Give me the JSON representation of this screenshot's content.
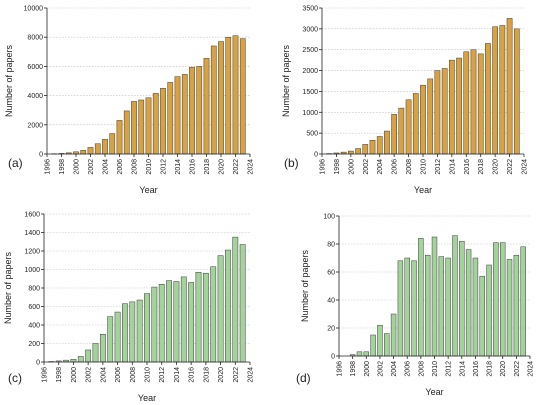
{
  "figure": {
    "panel_labels": [
      "(a)",
      "(b)",
      "(c)",
      "(d)"
    ],
    "colors": {
      "orange": "#d9a241",
      "green": "#a3d39a",
      "bar_stroke": "#3a3a3a",
      "grid": "#bdbdbd"
    }
  },
  "chart_data": [
    {
      "type": "bar",
      "panel": "(a)",
      "xlabel": "Year",
      "ylabel": "Number of papers",
      "xlim": [
        1996,
        2024
      ],
      "xticks": [
        1996,
        1998,
        2000,
        2002,
        2004,
        2006,
        2008,
        2010,
        2012,
        2014,
        2016,
        2018,
        2020,
        2022,
        2024
      ],
      "ylim": [
        0,
        10000
      ],
      "yticks": [
        0,
        2000,
        4000,
        6000,
        8000,
        10000
      ],
      "grid": true,
      "color": "#d9a241",
      "x": [
        1997,
        1998,
        1999,
        2000,
        2001,
        2002,
        2003,
        2004,
        2005,
        2006,
        2007,
        2008,
        2009,
        2010,
        2011,
        2012,
        2013,
        2014,
        2015,
        2016,
        2017,
        2018,
        2019,
        2020,
        2021,
        2022,
        2023
      ],
      "values": [
        20,
        40,
        80,
        150,
        250,
        450,
        700,
        1000,
        1400,
        2300,
        2950,
        3600,
        3700,
        3850,
        4150,
        4500,
        4900,
        5300,
        5450,
        5950,
        6000,
        6550,
        7400,
        7700,
        8000,
        8100,
        7900
      ]
    },
    {
      "type": "bar",
      "panel": "(b)",
      "xlabel": "Year",
      "ylabel": "Number of papers",
      "xlim": [
        1996,
        2024
      ],
      "xticks": [
        1996,
        1998,
        2000,
        2002,
        2004,
        2006,
        2008,
        2010,
        2012,
        2014,
        2016,
        2018,
        2020,
        2022,
        2024
      ],
      "ylim": [
        0,
        3500
      ],
      "yticks": [
        0,
        500,
        1000,
        1500,
        2000,
        2500,
        3000,
        3500
      ],
      "grid": true,
      "color": "#d9a241",
      "x": [
        1997,
        1998,
        1999,
        2000,
        2001,
        2002,
        2003,
        2004,
        2005,
        2006,
        2007,
        2008,
        2009,
        2010,
        2011,
        2012,
        2013,
        2014,
        2015,
        2016,
        2017,
        2018,
        2019,
        2020,
        2021,
        2022,
        2023
      ],
      "values": [
        10,
        25,
        45,
        70,
        130,
        230,
        330,
        420,
        550,
        950,
        1100,
        1300,
        1450,
        1650,
        1800,
        2000,
        2050,
        2250,
        2300,
        2450,
        2500,
        2400,
        2650,
        3050,
        3080,
        3250,
        3000
      ]
    },
    {
      "type": "bar",
      "panel": "(c)",
      "xlabel": "Year",
      "ylabel": "Number of papers",
      "xlim": [
        1996,
        2024
      ],
      "xticks": [
        1996,
        1998,
        2000,
        2002,
        2004,
        2006,
        2008,
        2010,
        2012,
        2014,
        2016,
        2018,
        2020,
        2022,
        2024
      ],
      "ylim": [
        0,
        1600
      ],
      "yticks": [
        0,
        200,
        400,
        600,
        800,
        1000,
        1200,
        1400,
        1600
      ],
      "grid": true,
      "color": "#a3d39a",
      "x": [
        1997,
        1998,
        1999,
        2000,
        2001,
        2002,
        2003,
        2004,
        2005,
        2006,
        2007,
        2008,
        2009,
        2010,
        2011,
        2012,
        2013,
        2014,
        2015,
        2016,
        2017,
        2018,
        2019,
        2020,
        2021,
        2022,
        2023
      ],
      "values": [
        5,
        12,
        20,
        30,
        60,
        130,
        200,
        300,
        490,
        540,
        630,
        650,
        670,
        740,
        810,
        840,
        880,
        870,
        920,
        860,
        970,
        960,
        1030,
        1150,
        1210,
        1350,
        1270
      ]
    },
    {
      "type": "bar",
      "panel": "(d)",
      "xlabel": "Year",
      "ylabel": "Number of papers",
      "xlim": [
        1996,
        2024
      ],
      "xticks": [
        1996,
        1998,
        2000,
        2002,
        2004,
        2006,
        2008,
        2010,
        2012,
        2014,
        2016,
        2018,
        2020,
        2022,
        2024
      ],
      "ylim": [
        0,
        100
      ],
      "yticks": [
        0,
        20,
        40,
        60,
        80,
        100
      ],
      "grid": true,
      "color": "#a3d39a",
      "x": [
        1998,
        1999,
        2000,
        2001,
        2002,
        2003,
        2004,
        2005,
        2006,
        2007,
        2008,
        2009,
        2010,
        2011,
        2012,
        2013,
        2014,
        2015,
        2016,
        2017,
        2018,
        2019,
        2020,
        2021,
        2022,
        2023
      ],
      "values": [
        1,
        3,
        3,
        15,
        22,
        16,
        30,
        68,
        70,
        68,
        84,
        72,
        85,
        71,
        70,
        86,
        82,
        76,
        70,
        57,
        65,
        81,
        81,
        69,
        72,
        78
      ]
    }
  ]
}
